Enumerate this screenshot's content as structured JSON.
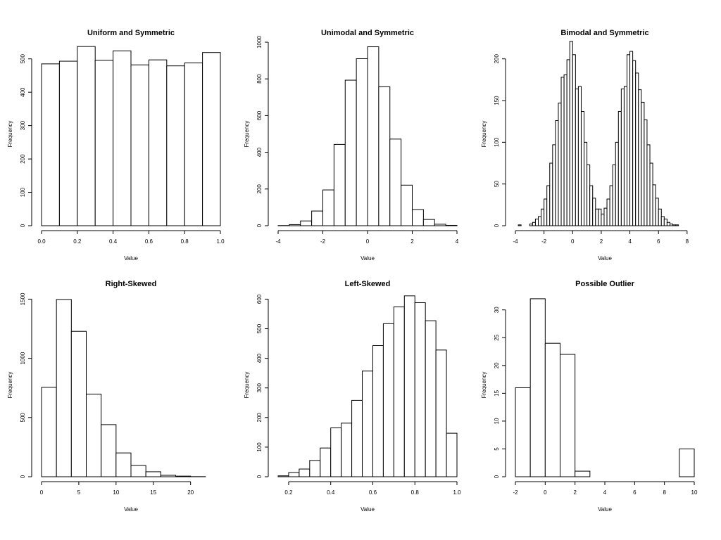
{
  "chart_data": [
    {
      "type": "bar",
      "title": "Uniform and Symmetric",
      "xlabel": "Value",
      "ylabel": "Frequency",
      "xlim": [
        0,
        1
      ],
      "ylim": [
        0,
        550
      ],
      "xticks": [
        0,
        0.2,
        0.4,
        0.6,
        0.8,
        1
      ],
      "xtick_labels": [
        "0.0",
        "0.2",
        "0.4",
        "0.6",
        "0.8",
        "1.0"
      ],
      "yticks": [
        0,
        100,
        200,
        300,
        400,
        500
      ],
      "ytick_labels": [
        "0",
        "100",
        "200",
        "300",
        "400",
        "500"
      ],
      "bin_edges": [
        0,
        0.1,
        0.2,
        0.3,
        0.4,
        0.5,
        0.6,
        0.7,
        0.8,
        0.9,
        1.0
      ],
      "values": [
        485,
        493,
        537,
        496,
        524,
        482,
        497,
        479,
        488,
        519
      ],
      "grid": false
    },
    {
      "type": "bar",
      "title": "Unimodal and Symmetric",
      "xlabel": "Value",
      "ylabel": "Frequency",
      "xlim": [
        -4,
        4
      ],
      "ylim": [
        0,
        1000
      ],
      "xticks": [
        -4,
        -2,
        0,
        2,
        4
      ],
      "xtick_labels": [
        "-4",
        "-2",
        "0",
        "2",
        "4"
      ],
      "yticks": [
        0,
        200,
        400,
        600,
        800,
        1000
      ],
      "ytick_labels": [
        "0",
        "200",
        "400",
        "600",
        "800",
        "1000"
      ],
      "bin_edges": [
        -4,
        -3.5,
        -3,
        -2.5,
        -2,
        -1.5,
        -1,
        -0.5,
        0,
        0.5,
        1,
        1.5,
        2,
        2.5,
        3,
        3.5,
        4
      ],
      "values": [
        1,
        6,
        26,
        80,
        195,
        443,
        793,
        910,
        975,
        757,
        472,
        221,
        88,
        34,
        8,
        2
      ],
      "grid": false
    },
    {
      "type": "bar",
      "title": "Bimodal and Symmetric",
      "xlabel": "Value",
      "ylabel": "Frequency",
      "xlim": [
        -4,
        8.5
      ],
      "ylim": [
        0,
        220
      ],
      "xticks": [
        -4,
        -2,
        0,
        2,
        4,
        6,
        8
      ],
      "xtick_labels": [
        "-4",
        "-2",
        "0",
        "2",
        "4",
        "6",
        "8"
      ],
      "yticks": [
        0,
        50,
        100,
        150,
        200
      ],
      "ytick_labels": [
        "0",
        "50",
        "100",
        "150",
        "200"
      ],
      "bin_start": -3.8,
      "bin_width": 0.2,
      "values": [
        1,
        0,
        0,
        0,
        2,
        4,
        8,
        11,
        20,
        32,
        48,
        75,
        97,
        126,
        147,
        178,
        181,
        199,
        221,
        205,
        164,
        167,
        137,
        100,
        73,
        48,
        33,
        20,
        20,
        14,
        21,
        32,
        48,
        73,
        100,
        137,
        164,
        167,
        205,
        209,
        198,
        183,
        163,
        148,
        127,
        97,
        75,
        49,
        33,
        20,
        11,
        8,
        4,
        2,
        1,
        1
      ],
      "grid": false
    },
    {
      "type": "bar",
      "title": "Right-Skewed",
      "xlabel": "Value",
      "ylabel": "Frequency",
      "xlim": [
        0,
        24
      ],
      "ylim": [
        0,
        1550
      ],
      "xticks": [
        0,
        5,
        10,
        15,
        20
      ],
      "xtick_labels": [
        "0",
        "5",
        "10",
        "15",
        "20"
      ],
      "yticks": [
        0,
        500,
        1000,
        1500
      ],
      "ytick_labels": [
        "0",
        "500",
        "1000",
        "1500"
      ],
      "bin_edges": [
        0,
        2,
        4,
        6,
        8,
        10,
        12,
        14,
        16,
        18,
        20,
        22,
        24
      ],
      "values": [
        755,
        1497,
        1228,
        698,
        440,
        201,
        95,
        42,
        12,
        5,
        1,
        0
      ],
      "grid": false
    },
    {
      "type": "bar",
      "title": "Left-Skewed",
      "xlabel": "Value",
      "ylabel": "Frequency",
      "xlim": [
        0.15,
        1.0
      ],
      "ylim": [
        0,
        620
      ],
      "xticks": [
        0.2,
        0.4,
        0.6,
        0.8,
        1.0
      ],
      "xtick_labels": [
        "0.2",
        "0.4",
        "0.6",
        "0.8",
        "1.0"
      ],
      "yticks": [
        0,
        100,
        200,
        300,
        400,
        500,
        600
      ],
      "ytick_labels": [
        "0",
        "100",
        "200",
        "300",
        "400",
        "500",
        "600"
      ],
      "bin_edges": [
        0.15,
        0.2,
        0.25,
        0.3,
        0.35,
        0.4,
        0.45,
        0.5,
        0.55,
        0.6,
        0.65,
        0.7,
        0.75,
        0.8,
        0.85,
        0.9,
        0.95,
        1.0
      ],
      "values": [
        3,
        14,
        26,
        55,
        97,
        165,
        181,
        258,
        357,
        443,
        517,
        574,
        611,
        588,
        527,
        428,
        147
      ],
      "grid": false
    },
    {
      "type": "bar",
      "title": "Possible Outlier",
      "xlabel": "Value",
      "ylabel": "Frequency",
      "xlim": [
        -2,
        10
      ],
      "ylim": [
        0,
        33
      ],
      "xticks": [
        -2,
        0,
        2,
        4,
        6,
        8,
        10
      ],
      "xtick_labels": [
        "-2",
        "0",
        "2",
        "4",
        "6",
        "8",
        "10"
      ],
      "yticks": [
        0,
        5,
        10,
        15,
        20,
        25,
        30
      ],
      "ytick_labels": [
        "0",
        "5",
        "10",
        "15",
        "20",
        "25",
        "30"
      ],
      "bin_edges": [
        -2,
        -1,
        0,
        1,
        2,
        3,
        4,
        5,
        6,
        7,
        8,
        9,
        10
      ],
      "values": [
        16,
        32,
        24,
        22,
        1,
        0,
        0,
        0,
        0,
        0,
        0,
        5
      ],
      "grid": false
    }
  ]
}
